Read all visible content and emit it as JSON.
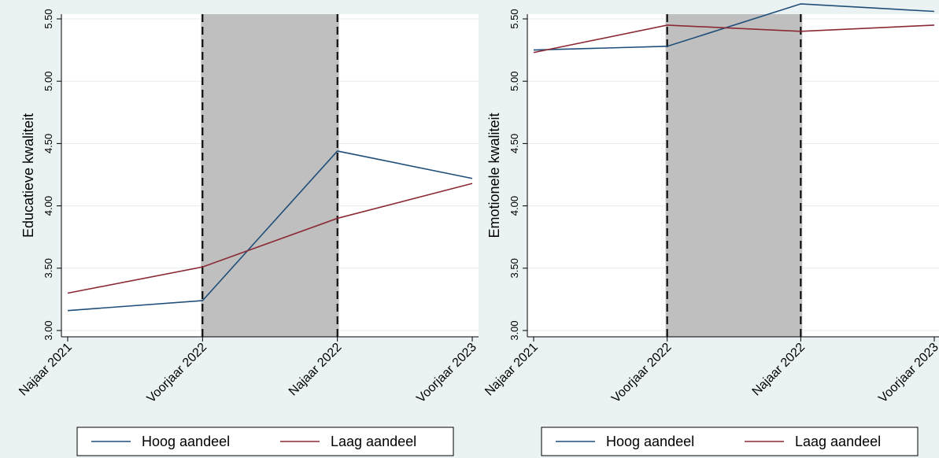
{
  "colors": {
    "series_hoog": "#1f4e79",
    "series_laag": "#8b2a35",
    "shade": "#bfbfbf",
    "plot_bg": "#ffffff",
    "page_bg": "#eaf2f3",
    "grid": "#e6eded"
  },
  "chart_data": [
    {
      "type": "line",
      "title": "",
      "xlabel": "",
      "ylabel": "Educatieve kwaliteit",
      "ylim": [
        3.0,
        5.5
      ],
      "yticks": [
        "3.00",
        "3.50",
        "4.00",
        "4.50",
        "5.00",
        "5.50"
      ],
      "categories": [
        "Najaar 2021",
        "Voorjaar 2022",
        "Najaar 2022",
        "Voorjaar 2023"
      ],
      "shaded_between": [
        "Voorjaar 2022",
        "Najaar 2022"
      ],
      "grid": true,
      "legend_position": "bottom",
      "series": [
        {
          "name": "Hoog aandeel",
          "color": "#1f4e79",
          "values": [
            3.16,
            3.24,
            4.44,
            4.22
          ]
        },
        {
          "name": "Laag aandeel",
          "color": "#8b2a35",
          "values": [
            3.3,
            3.51,
            3.9,
            4.18
          ]
        }
      ]
    },
    {
      "type": "line",
      "title": "",
      "xlabel": "",
      "ylabel": "Emotionele kwaliteit",
      "ylim": [
        3.0,
        5.5
      ],
      "yticks": [
        "3.00",
        "3.50",
        "4.00",
        "4.50",
        "5.00",
        "5.50"
      ],
      "categories": [
        "Najaar 2021",
        "Voorjaar 2022",
        "Najaar 2022",
        "Voorjaar 2023"
      ],
      "shaded_between": [
        "Voorjaar 2022",
        "Najaar 2022"
      ],
      "grid": true,
      "legend_position": "bottom",
      "series": [
        {
          "name": "Hoog aandeel",
          "color": "#1f4e79",
          "values": [
            5.25,
            5.28,
            5.62,
            5.56
          ]
        },
        {
          "name": "Laag aandeel",
          "color": "#8b2a35",
          "values": [
            5.23,
            5.45,
            5.4,
            5.45
          ]
        }
      ]
    }
  ]
}
